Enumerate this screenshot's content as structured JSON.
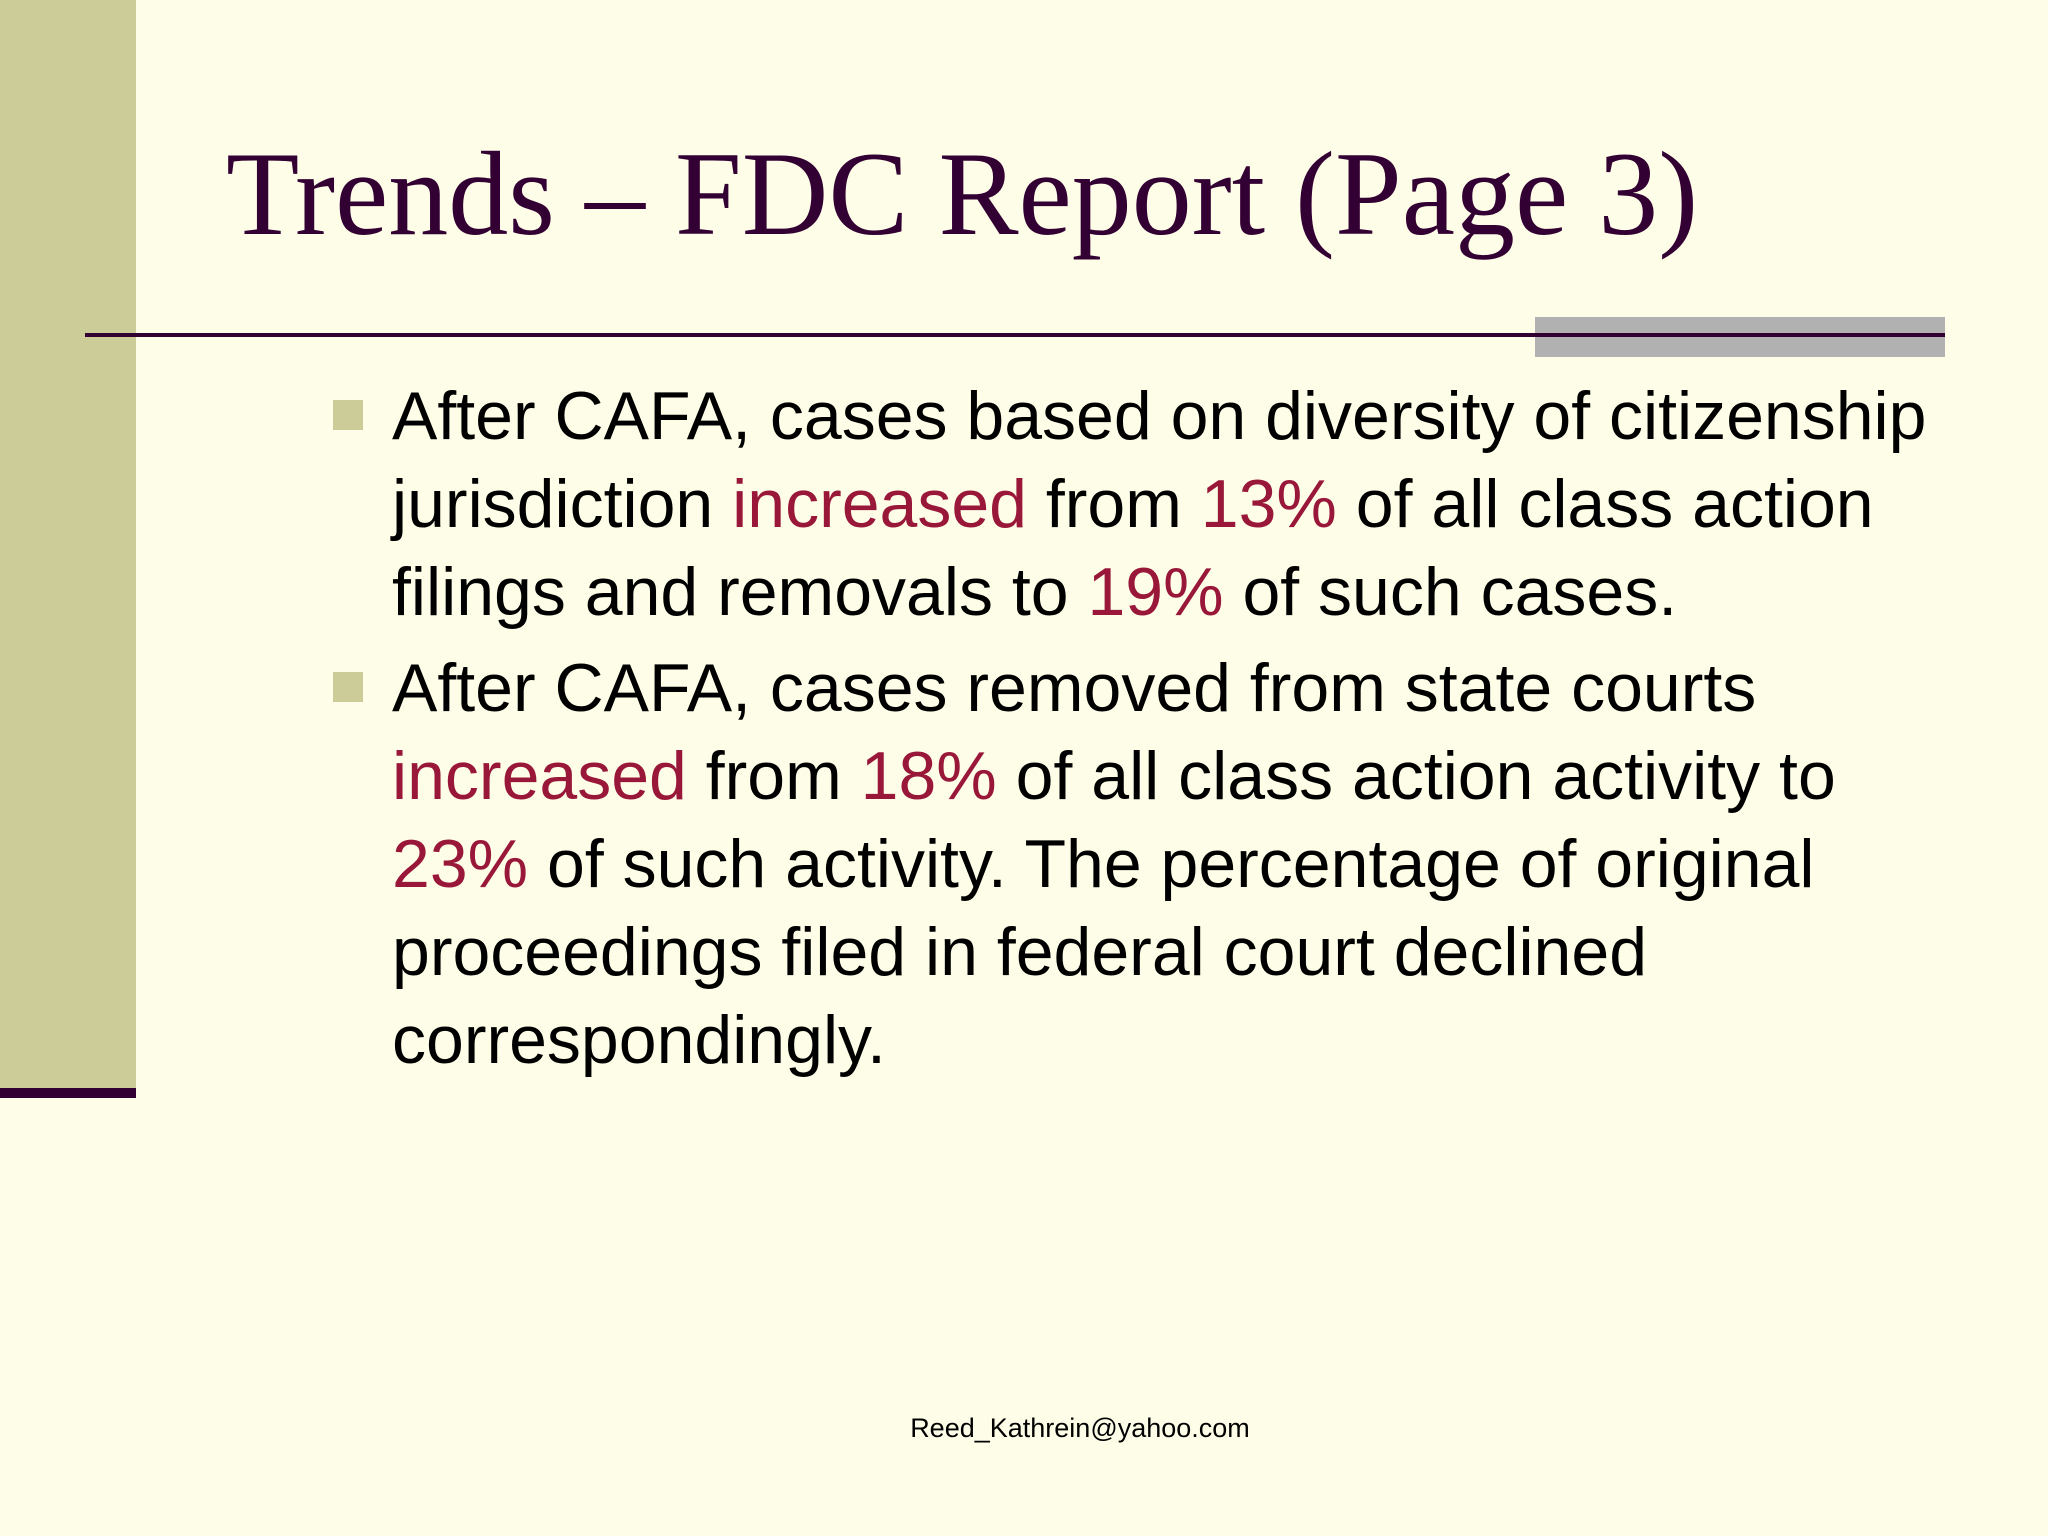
{
  "slide": {
    "title": "Trends – FDC Report (Page 3)",
    "accent_color": "#cccc99",
    "title_color": "#330033",
    "highlight_color": "#99183a",
    "bullet_icon": "square-bullet-icon",
    "bullets": [
      {
        "parts": [
          "After CAFA, cases based on diversity of citizenship jurisdiction ",
          "increased",
          " from ",
          "13%",
          " of all class action filings and removals to ",
          "19%",
          " of such cases."
        ]
      },
      {
        "parts": [
          "After CAFA, cases removed from state courts ",
          "increased",
          " from ",
          "18%",
          " of all class action activity to ",
          "23%",
          " of such activity. The percentage of original proceedings filed in federal court declined correspondingly."
        ]
      }
    ],
    "footer": "Reed_Kathrein@yahoo.com"
  }
}
